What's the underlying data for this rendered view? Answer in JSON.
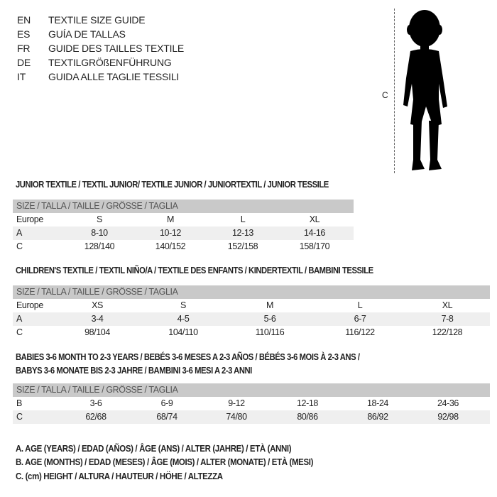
{
  "languages": [
    {
      "code": "EN",
      "title": "TEXTILE SIZE GUIDE"
    },
    {
      "code": "ES",
      "title": "GUÍA DE TALLAS"
    },
    {
      "code": "FR",
      "title": "GUIDE DES TAILLES TEXTILE"
    },
    {
      "code": "DE",
      "title": "TEXTILGRÖßENFÜHRUNG"
    },
    {
      "code": "IT",
      "title": "GUIDA ALLE TAGLIE TESSILI"
    }
  ],
  "figure": {
    "measure_label": "C",
    "icon": "child-silhouette-icon"
  },
  "junior": {
    "title": "JUNIOR TEXTILE / TEXTIL JUNIOR/ TEXTILE JUNIOR / JUNIORTEXTIL / JUNIOR TESSILE",
    "header": "SIZE / TALLA / TAILLE / GRÖSSE / TAGLIA",
    "rows": [
      {
        "label": "Europe",
        "cells": [
          "S",
          "M",
          "L",
          "XL"
        ]
      },
      {
        "label": "A",
        "cells": [
          "8-10",
          "10-12",
          "12-13",
          "14-16"
        ]
      },
      {
        "label": "C",
        "cells": [
          "128/140",
          "140/152",
          "152/158",
          "158/170"
        ]
      }
    ]
  },
  "children": {
    "title": "CHILDREN'S TEXTILE / TEXTIL NIÑO/A / TEXTILE DES ENFANTS / KINDERTEXTIL / BAMBINI TESSILE",
    "header": "SIZE / TALLA / TAILLE / GRÖSSE / TAGLIA",
    "rows": [
      {
        "label": "Europe",
        "cells": [
          "XS",
          "S",
          "M",
          "L",
          "XL"
        ]
      },
      {
        "label": "A",
        "cells": [
          "3-4",
          "4-5",
          "5-6",
          "6-7",
          "7-8"
        ]
      },
      {
        "label": "C",
        "cells": [
          "98/104",
          "104/110",
          "110/116",
          "116/122",
          "122/128"
        ]
      }
    ]
  },
  "babies": {
    "title_line1": "BABIES 3-6 MONTH TO 2-3 YEARS / BEBÉS 3-6 MESES A 2-3 AÑOS / BÉBÉS 3-6 MOIS À 2-3 ANS /",
    "title_line2": "BABYS 3-6 MONATE BIS 2-3 JAHRE / BAMBINI 3-6 MESI A 2-3 ANNI",
    "header": "SIZE / TALLA / TAILLE / GRÖSSE / TAGLIA",
    "rows": [
      {
        "label": "B",
        "cells": [
          "3-6",
          "6-9",
          "9-12",
          "12-18",
          "18-24",
          "24-36"
        ]
      },
      {
        "label": "C",
        "cells": [
          "62/68",
          "68/74",
          "74/80",
          "80/86",
          "86/92",
          "92/98"
        ]
      }
    ]
  },
  "legend": [
    "A. AGE (YEARS) / EDAD (AÑOS) / ÂGE (ANS) / ALTER (JAHRE) / ETÀ (ANNI)",
    "B. AGE (MONTHS) / EDAD (MESES) / ÂGE (MOIS) / ALTER (MONATE) / ETÀ (MESI)",
    "C. (cm) HEIGHT / ALTURA / HAUTEUR / HÖHE / ALTEZZA"
  ]
}
